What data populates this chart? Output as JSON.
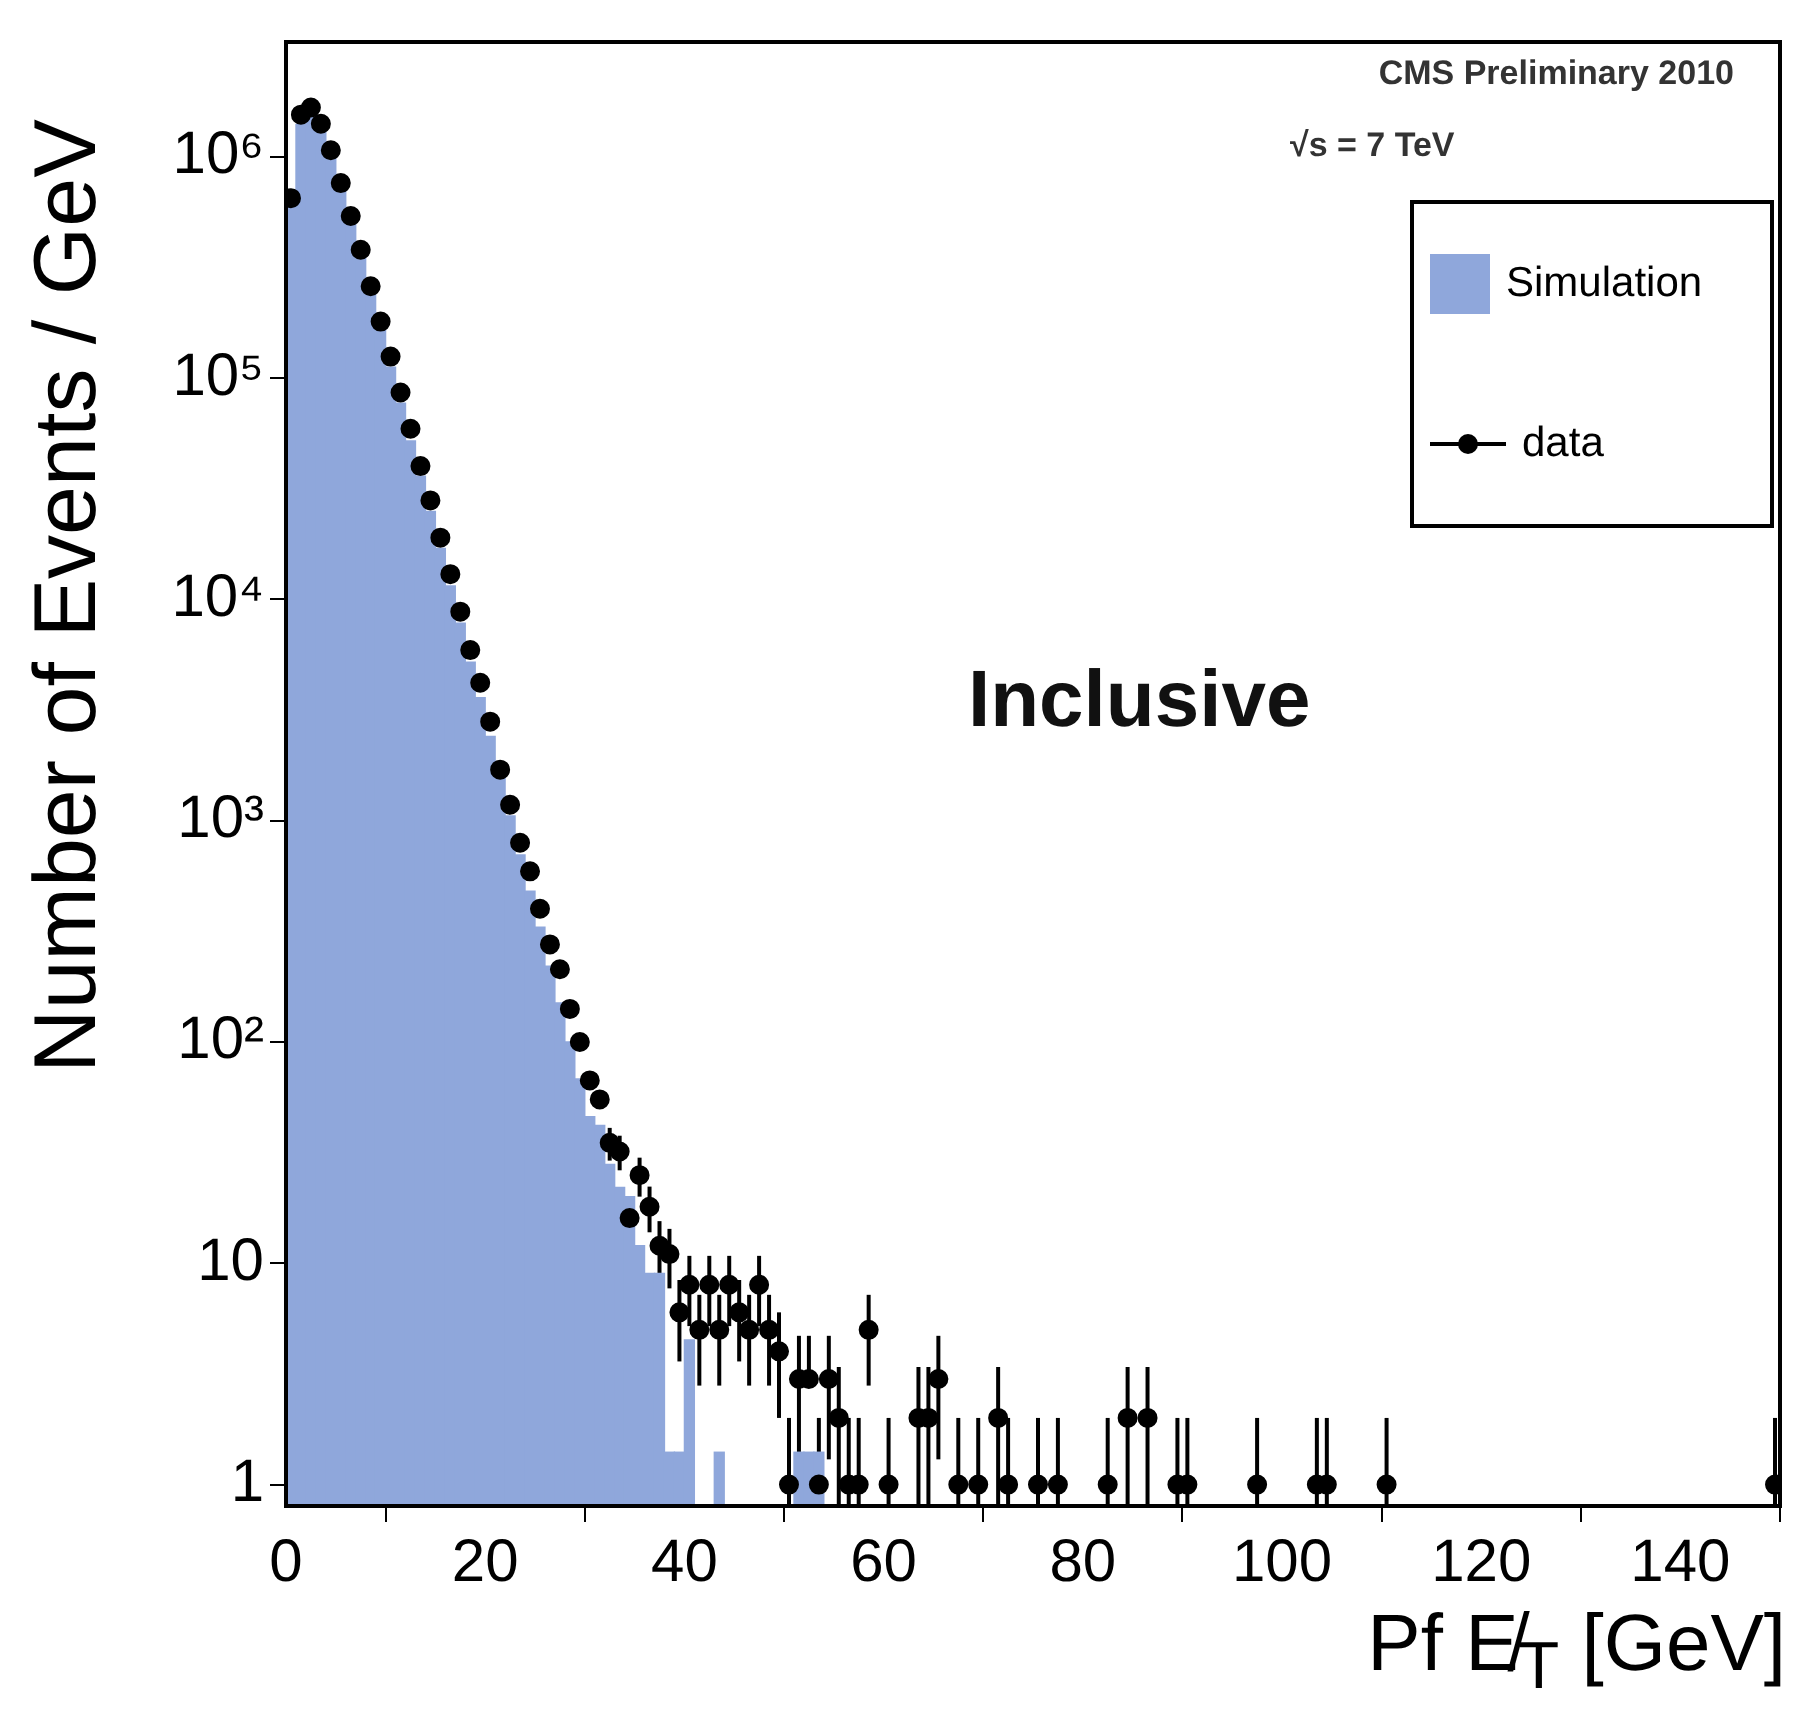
{
  "chart_data": {
    "type": "histogram",
    "xlabel": "Pf E̸$_{T}$ [GeV]",
    "ylabel": "Number of Events / GeV",
    "annotations": [
      "CMS Preliminary 2010",
      "√s = 7 TeV",
      "Inclusive"
    ],
    "bins": [
      0,
      1,
      2,
      3,
      4,
      5,
      6,
      7,
      8,
      9,
      10,
      11,
      12,
      13,
      14,
      15,
      16,
      17,
      18,
      19,
      20,
      21,
      22,
      23,
      24,
      25,
      26,
      27,
      28,
      29,
      30,
      31,
      32,
      33,
      34,
      35,
      36,
      37,
      38,
      39,
      40,
      41,
      42,
      43,
      44,
      45,
      46,
      47,
      48,
      49,
      50,
      51,
      52,
      53,
      54
    ],
    "series": [
      {
        "name": "Simulation",
        "color": "#8fa7db",
        "values": [
          600000,
          1400000,
          1500000,
          1350000,
          1000000,
          720000,
          500000,
          350000,
          240000,
          165000,
          112000,
          77000,
          52000,
          36000,
          25000,
          17000,
          11500,
          7800,
          5200,
          3600,
          2400,
          1600,
          1050,
          700,
          480,
          330,
          220,
          150,
          100,
          68,
          46,
          42,
          28,
          22,
          20,
          12,
          9,
          9,
          1.4,
          1.4,
          4.5,
          null,
          null,
          1.4,
          null,
          null,
          null,
          null,
          null,
          null,
          null,
          1.4,
          1.4,
          1.4
        ]
      },
      {
        "name": "data",
        "type": "scatter",
        "color": "#000000",
        "x": [
          0.5,
          1.5,
          2.5,
          3.5,
          4.5,
          5.5,
          6.5,
          7.5,
          8.5,
          9.5,
          10.5,
          11.5,
          12.5,
          13.5,
          14.5,
          15.5,
          16.5,
          17.5,
          18.5,
          19.5,
          20.5,
          21.5,
          22.5,
          23.5,
          24.5,
          25.5,
          26.5,
          27.5,
          28.5,
          29.5,
          30.5,
          31.5,
          32.5,
          33.5,
          34.5,
          35.5,
          36.5,
          37.5,
          38.5,
          39.5,
          40.5,
          41.5,
          42.5,
          43.5,
          44.5,
          45.5,
          46.5,
          47.5,
          48.5,
          49.5,
          50.5,
          51.5,
          52.5,
          53.5,
          54.5,
          55.5,
          56.5,
          57.5,
          58.5,
          60.5,
          63.5,
          64.5,
          65.5,
          67.5,
          69.5,
          71.5,
          72.5,
          75.5,
          77.5,
          82.5,
          84.5,
          86.5,
          89.5,
          90.5,
          97.5,
          103.5,
          104.5,
          110.5,
          149.5
        ],
        "values": [
          650000,
          1550000,
          1670000,
          1410000,
          1070000,
          760000,
          540000,
          380000,
          260000,
          180000,
          125000,
          86000,
          59000,
          40000,
          28000,
          19000,
          13000,
          8800,
          5900,
          4200,
          2800,
          1700,
          1180,
          795,
          590,
          400,
          276,
          213,
          141,
          100,
          67,
          55,
          35,
          32,
          16,
          25,
          18,
          12,
          11,
          6,
          8,
          5,
          8,
          5,
          8,
          6,
          5,
          8,
          5,
          4,
          1,
          3,
          3,
          1,
          3,
          2,
          1,
          1,
          5,
          1,
          2,
          2,
          3,
          1,
          1,
          2,
          1,
          1,
          1,
          1,
          2,
          2,
          1,
          1,
          1,
          1,
          1,
          1,
          1
        ],
        "errors": [
          null,
          null,
          null,
          null,
          null,
          null,
          null,
          null,
          null,
          null,
          null,
          null,
          null,
          null,
          null,
          null,
          null,
          null,
          null,
          null,
          null,
          null,
          null,
          null,
          null,
          null,
          null,
          null,
          null,
          null,
          null,
          null,
          [
            29.1,
            40.9
          ],
          [
            26.3,
            37.7
          ],
          null,
          [
            20,
            30
          ],
          [
            13.8,
            22.2
          ],
          [
            8.5,
            15.5
          ],
          [
            7.7,
            14.3
          ],
          [
            3.6,
            8.4
          ],
          [
            5.2,
            10.8
          ],
          [
            2.8,
            7.2
          ],
          [
            5.2,
            10.8
          ],
          [
            2.8,
            7.2
          ],
          [
            5.2,
            10.8
          ],
          [
            3.6,
            8.4
          ],
          [
            2.8,
            7.2
          ],
          [
            5.2,
            10.8
          ],
          [
            2.8,
            7.2
          ],
          [
            2,
            6
          ],
          [
            0.8,
            2
          ],
          [
            1.3,
            4.7
          ],
          [
            3,
            4.7
          ],
          [
            0.8,
            2
          ],
          [
            1.3,
            4.7
          ],
          [
            0.8,
            3.4
          ],
          [
            0.8,
            2
          ],
          [
            0.8,
            2
          ],
          [
            2.8,
            7.2
          ],
          [
            0.8,
            2
          ],
          [
            0.8,
            3.4
          ],
          [
            0.8,
            3.4
          ],
          [
            1.3,
            4.7
          ],
          [
            0.8,
            2
          ],
          [
            0.8,
            2
          ],
          [
            0.8,
            3.4
          ],
          [
            0.8,
            2
          ],
          [
            0.8,
            2
          ],
          [
            0.8,
            2
          ],
          [
            0.8,
            2
          ],
          [
            0.8,
            3.4
          ],
          [
            0.8,
            3.4
          ],
          [
            0.8,
            2
          ],
          [
            0.8,
            2
          ],
          [
            0.8,
            2
          ],
          [
            0.8,
            2
          ],
          [
            0.8,
            2
          ],
          [
            0.8,
            2
          ],
          [
            0.8,
            2
          ]
        ]
      }
    ],
    "xlim": [
      0,
      150
    ],
    "xticks": [
      0,
      20,
      40,
      60,
      80,
      100,
      120,
      140
    ],
    "log": "y",
    "ylim": [
      0.8,
      3300000
    ],
    "yticks": [
      1,
      10,
      {
        "value": 100,
        "label": "10²"
      },
      {
        "value": 1000,
        "label": "10³"
      },
      {
        "value": 10000,
        "label": "10⁴"
      },
      {
        "value": 100000,
        "label": "10⁵"
      },
      {
        "value": 1000000,
        "label": "10⁶"
      }
    ],
    "grid": false,
    "legend": "top right",
    "marker": "circle"
  }
}
